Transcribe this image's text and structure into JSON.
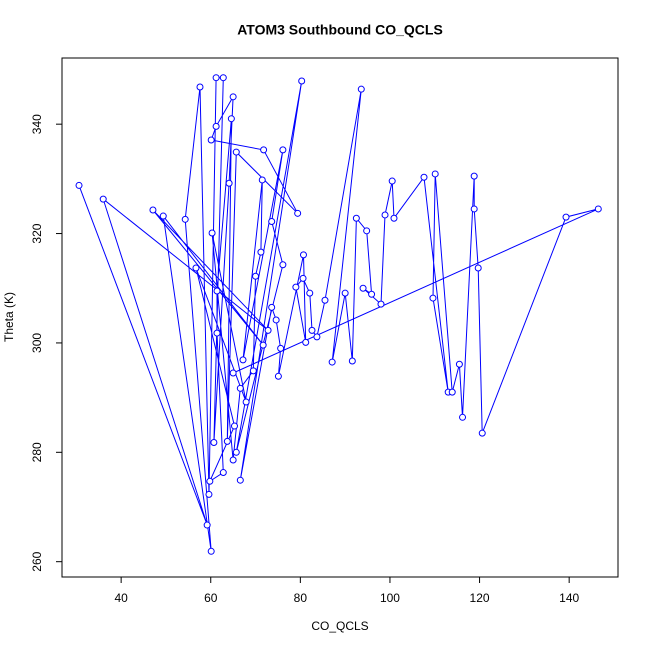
{
  "chart_data": {
    "type": "line",
    "title": "ATOM3 Southbound CO_QCLS",
    "x_label": "CO_QCLS",
    "y_label": "Theta (K)",
    "xlim": [
      26.8,
      150.9
    ],
    "ylim": [
      257.2,
      352.1
    ],
    "xticks": [
      40,
      60,
      80,
      100,
      120,
      140
    ],
    "yticks": [
      260,
      280,
      300,
      320,
      340
    ],
    "series": [
      {
        "color": "#0000ff",
        "x": [
          30.6,
          59.2,
          36.0,
          72.8,
          47.1,
          71.7,
          49.4,
          60.1,
          54.3,
          57.6,
          59.6,
          61.2,
          62.8,
          60.7,
          64.1,
          65.0,
          61.2,
          60.1,
          71.8,
          79.4,
          65.7,
          63.7,
          64.6,
          61.4,
          61.4,
          62.8,
          59.8,
          65.3,
          56.7,
          67.9,
          60.3,
          65.0,
          66.6,
          69.5,
          70.0,
          71.2,
          71.5,
          67.2,
          76.1,
          73.6,
          76.1,
          65.7,
          80.3,
          66.6,
          73.6,
          74.6,
          75.6,
          75.1,
          80.7,
          81.2,
          79.0,
          80.6,
          82.1,
          82.6,
          83.7,
          85.5,
          93.6,
          87.1,
          90.0,
          91.6,
          92.5,
          94.8,
          95.9,
          94.0,
          98.0,
          98.9,
          100.5,
          100.9,
          107.6,
          113.0,
          109.6,
          110.1,
          113.9,
          115.5,
          116.2,
          118.8,
          118.8,
          119.7,
          120.6,
          139.3,
          146.5,
          65.0
        ],
        "y": [
          328.8,
          266.7,
          326.3,
          302.3,
          324.3,
          299.6,
          323.2,
          261.9,
          322.6,
          346.8,
          272.3,
          348.5,
          348.5,
          281.8,
          329.2,
          345.0,
          339.6,
          337.1,
          335.3,
          323.7,
          334.9,
          282.0,
          341.0,
          309.5,
          301.8,
          276.3,
          274.7,
          284.8,
          313.7,
          289.2,
          320.1,
          278.6,
          291.7,
          294.9,
          312.2,
          316.6,
          329.8,
          296.9,
          335.3,
          322.2,
          314.3,
          280.0,
          347.9,
          274.9,
          306.5,
          304.2,
          299.0,
          293.9,
          316.1,
          300.1,
          310.2,
          311.8,
          309.1,
          302.3,
          301.1,
          307.8,
          346.4,
          296.5,
          309.1,
          296.7,
          322.8,
          320.5,
          308.9,
          310.0,
          307.1,
          323.4,
          329.6,
          322.8,
          330.3,
          291.0,
          308.2,
          330.9,
          291.0,
          296.1,
          286.4,
          330.5,
          324.5,
          313.7,
          283.5,
          323.0,
          324.5,
          294.5
        ]
      }
    ]
  }
}
